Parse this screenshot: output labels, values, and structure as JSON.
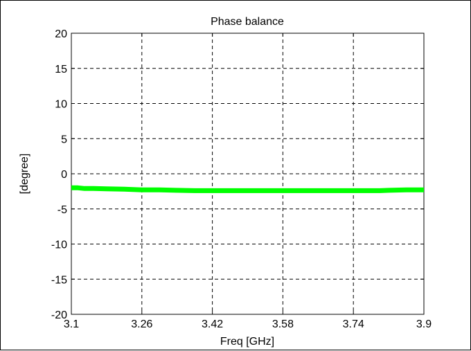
{
  "chart_data": {
    "type": "line",
    "title": "Phase balance",
    "xlabel": "Freq [GHz]",
    "ylabel": "[degree]",
    "xlim": [
      3.1,
      3.9
    ],
    "ylim": [
      -20,
      20
    ],
    "xticks": [
      3.1,
      3.26,
      3.42,
      3.58,
      3.74,
      3.9
    ],
    "xtick_labels": [
      "3.1",
      "3.26",
      "3.42",
      "3.58",
      "3.74",
      "3.9"
    ],
    "yticks": [
      -20,
      -15,
      -10,
      -5,
      0,
      5,
      10,
      15,
      20
    ],
    "ytick_labels": [
      "-20",
      "-15",
      "-10",
      "-5",
      "0",
      "5",
      "10",
      "15",
      "20"
    ],
    "grid": true,
    "grid_style": "dashed",
    "series": [
      {
        "color": "#00ff00",
        "x": [
          3.1,
          3.115,
          3.13,
          3.15,
          3.18,
          3.22,
          3.26,
          3.3,
          3.34,
          3.38,
          3.42,
          3.5,
          3.58,
          3.66,
          3.74,
          3.8,
          3.82,
          3.86,
          3.9
        ],
        "y": [
          -2.0,
          -2.0,
          -2.1,
          -2.1,
          -2.15,
          -2.2,
          -2.3,
          -2.3,
          -2.35,
          -2.4,
          -2.4,
          -2.4,
          -2.4,
          -2.4,
          -2.4,
          -2.4,
          -2.35,
          -2.3,
          -2.3
        ]
      }
    ]
  }
}
